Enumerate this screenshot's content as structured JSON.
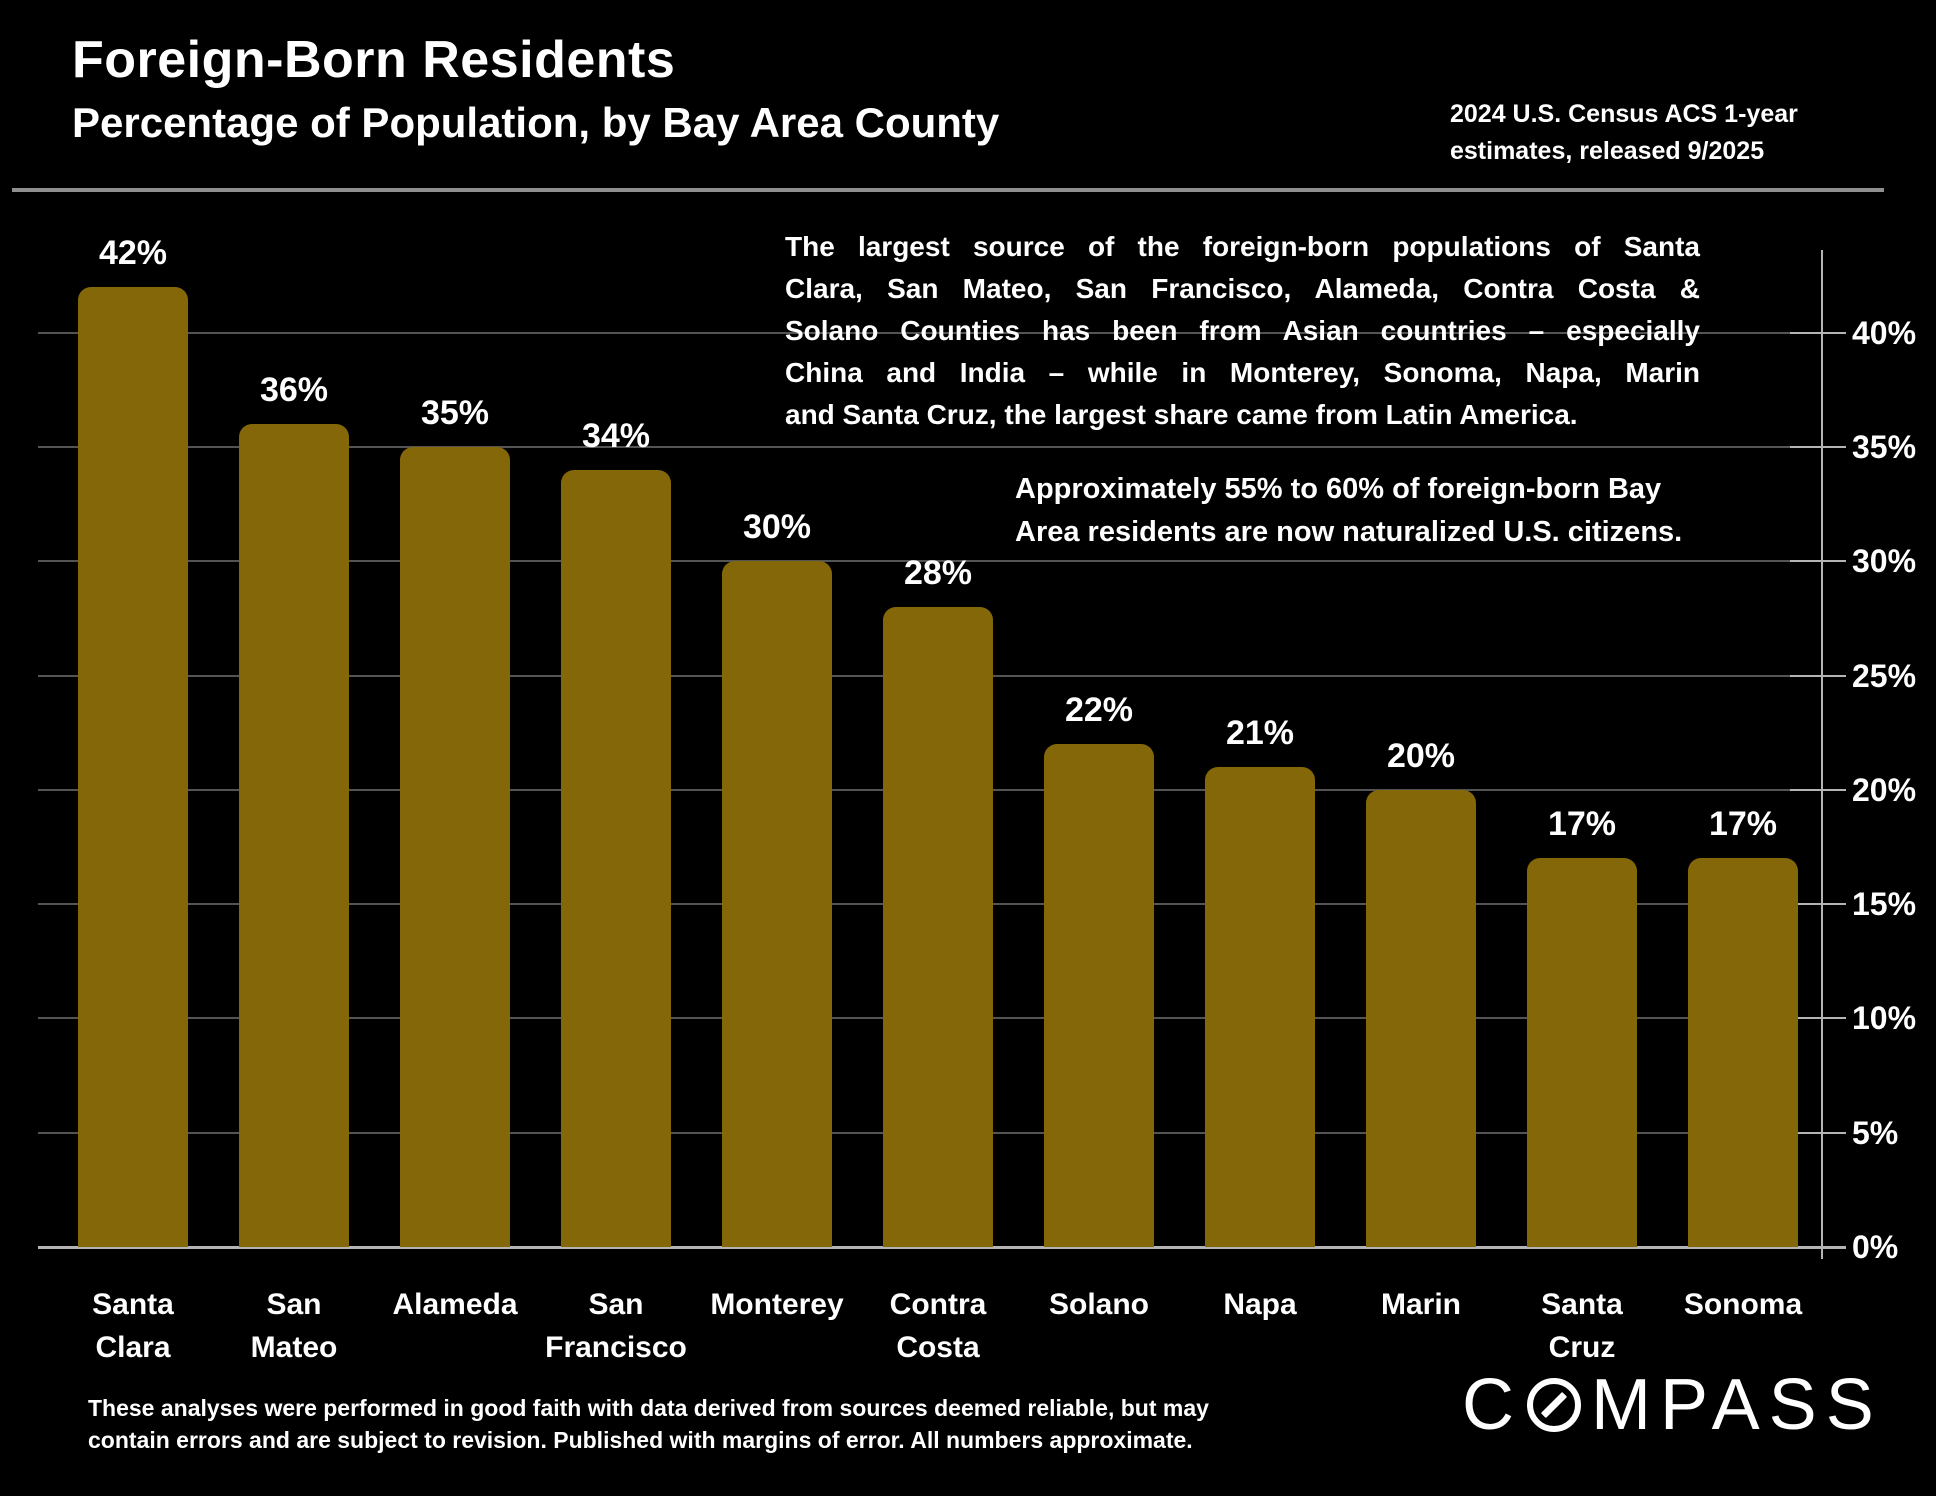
{
  "page": {
    "background": "#000000"
  },
  "header": {
    "title": "Foreign-Born Residents",
    "subtitle": "Percentage of Population, by Bay Area County",
    "source_note_line1": "2024 U.S. Census ACS 1-year",
    "source_note_line2": "estimates, released 9/2025"
  },
  "annotations": {
    "primary_lines": [
      "The largest source of the foreign-born populations of Santa",
      "Clara, San Mateo, San Francisco, Alameda, Contra Costa &",
      "Solano Counties has been from Asian countries – especially",
      "China and India – while in Monterey, Sonoma, Napa, Marin",
      "and Santa Cruz, the largest share came from Latin America."
    ],
    "secondary_lines": [
      "Approximately 55% to 60% of foreign-born Bay",
      "Area residents are now naturalized U.S. citizens."
    ]
  },
  "chart_data": {
    "type": "bar",
    "title": "Foreign-Born Residents",
    "subtitle": "Percentage of Population, by Bay Area County",
    "categories": [
      "Santa Clara",
      "San Mateo",
      "Alameda",
      "San Francisco",
      "Monterey",
      "Contra Costa",
      "Solano",
      "Napa",
      "Marin",
      "Santa Cruz",
      "Sonoma"
    ],
    "values": [
      42,
      36,
      35,
      34,
      30,
      28,
      22,
      21,
      20,
      17,
      17
    ],
    "value_labels": [
      "42%",
      "36%",
      "35%",
      "34%",
      "30%",
      "28%",
      "22%",
      "21%",
      "20%",
      "17%",
      "17%"
    ],
    "y_ticks": [
      0,
      5,
      10,
      15,
      20,
      25,
      30,
      35,
      40
    ],
    "y_tick_labels": [
      "0%",
      "5%",
      "10%",
      "15%",
      "20%",
      "25%",
      "30%",
      "35%",
      "40%"
    ],
    "ylim": [
      0,
      44
    ],
    "xlabel": "",
    "ylabel": "",
    "grid": true,
    "legend": false,
    "axis_side": "right",
    "bar_color": "#846708",
    "label_color": "#ffffff",
    "gridline_color": "#545454",
    "axis_color": "#b4b4b4"
  },
  "footer": {
    "disclaimer_line1": "These analyses were performed in good faith with data derived from sources deemed reliable, but may",
    "disclaimer_line2": "contain errors and are subject to revision.  Published with margins of error. All numbers approximate."
  },
  "logo": {
    "name": "COMPASS",
    "text_before_o": "C",
    "text_after_o": "MPASS"
  }
}
